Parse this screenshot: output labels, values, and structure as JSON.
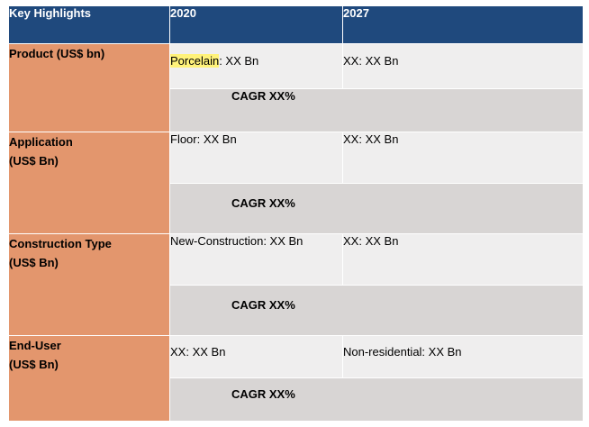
{
  "header": {
    "col1": "Key Highlights",
    "col2": "2020",
    "col3": "2027"
  },
  "rows": [
    {
      "segment_line1": "Product (US$ bn)",
      "segment_line2": "",
      "v2020_highlight": "Porcelain",
      "v2020_rest": ": XX Bn",
      "v2027": "XX: XX Bn",
      "cagr": "CAGR XX%"
    },
    {
      "segment_line1": "Application",
      "segment_line2": "(US$ Bn)",
      "v2020": "Floor: XX Bn",
      "v2027": "XX: XX Bn",
      "cagr": "CAGR XX%"
    },
    {
      "segment_line1": "Construction Type",
      "segment_line2": "(US$ Bn)",
      "v2020": "New-Construction: XX Bn",
      "v2027": "XX: XX Bn",
      "cagr": "CAGR XX%"
    },
    {
      "segment_line1": "End-User",
      "segment_line2": "(US$ Bn)",
      "v2020": "XX: XX Bn",
      "v2027": "Non-residential: XX Bn",
      "cagr": "CAGR XX%"
    }
  ],
  "colors": {
    "header_bg": "#1f497d",
    "segment_bg": "#e3966d",
    "value_bg": "#efeeee",
    "cagr_bg": "#d8d5d4",
    "highlight": "#fff27a"
  }
}
